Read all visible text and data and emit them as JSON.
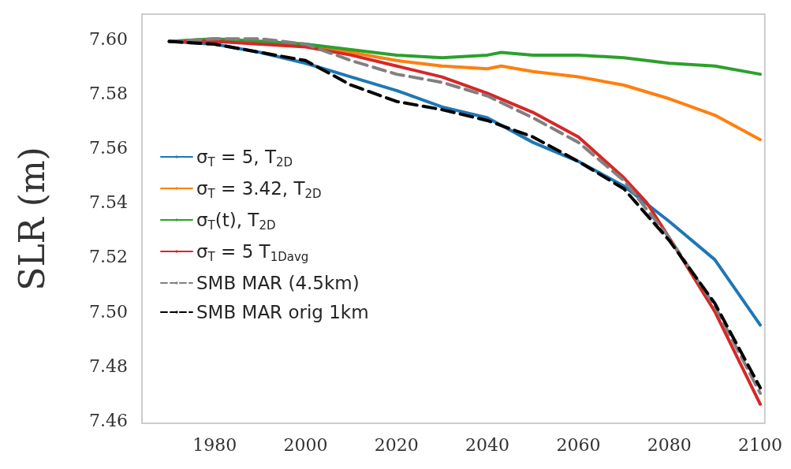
{
  "chart_data": {
    "type": "line",
    "ylabel": "SLR (m)",
    "xlim": [
      1964,
      2101
    ],
    "ylim": [
      7.459,
      7.609
    ],
    "xticks": [
      1980,
      2000,
      2020,
      2040,
      2060,
      2080,
      2100
    ],
    "yticks": [
      {
        "value": 7.46,
        "label": "7.46"
      },
      {
        "value": 7.48,
        "label": "7.48"
      },
      {
        "value": 7.5,
        "label": "7.50"
      },
      {
        "value": 7.52,
        "label": "7.52"
      },
      {
        "value": 7.54,
        "label": "7.54"
      },
      {
        "value": 7.56,
        "label": "7.56"
      },
      {
        "value": 7.58,
        "label": "7.58"
      },
      {
        "value": 7.6,
        "label": "7.60"
      }
    ],
    "grid": false,
    "legend": "left",
    "marker": "none",
    "series": [
      {
        "name": "σ$_{T}$ = 5, T$_{2D}$",
        "color": "#1f77b4",
        "line_style": "solid",
        "x": [
          1970,
          1980,
          1990,
          2000,
          2010,
          2020,
          2030,
          2040,
          2050,
          2060,
          2070,
          2080,
          2090,
          2100
        ],
        "values": [
          7.599,
          7.598,
          7.595,
          7.591,
          7.586,
          7.581,
          7.575,
          7.571,
          7.562,
          7.555,
          7.546,
          7.533,
          7.519,
          7.495
        ]
      },
      {
        "name": "σ$_{T}$ = 3.42, T$_{2D}$",
        "color": "#ff7f0e",
        "line_style": "solid",
        "x": [
          1990,
          2000,
          2010,
          2020,
          2030,
          2040,
          2043,
          2050,
          2060,
          2070,
          2080,
          2090,
          2100
        ],
        "values": [
          7.599,
          7.598,
          7.595,
          7.592,
          7.59,
          7.589,
          7.59,
          7.588,
          7.586,
          7.583,
          7.578,
          7.572,
          7.563
        ]
      },
      {
        "name": "σ$_{T}$(t), T$_{2D}$",
        "color": "#2ca02c",
        "line_style": "solid",
        "x": [
          1970,
          1980,
          1990,
          2000,
          2010,
          2020,
          2030,
          2040,
          2043,
          2050,
          2060,
          2070,
          2080,
          2090,
          2100
        ],
        "values": [
          7.599,
          7.6,
          7.599,
          7.598,
          7.596,
          7.594,
          7.593,
          7.594,
          7.595,
          7.594,
          7.594,
          7.593,
          7.591,
          7.59,
          7.587
        ]
      },
      {
        "name": "σ$_{T}$ = 5 T$_{1Davg}$",
        "color": "#d62728",
        "line_style": "solid",
        "x": [
          1970,
          1980,
          1990,
          2000,
          2010,
          2020,
          2030,
          2040,
          2050,
          2060,
          2070,
          2075,
          2080,
          2090,
          2100
        ],
        "values": [
          7.599,
          7.599,
          7.598,
          7.597,
          7.594,
          7.59,
          7.586,
          7.58,
          7.573,
          7.564,
          7.549,
          7.54,
          7.527,
          7.5,
          7.466
        ]
      },
      {
        "name": "SMB MAR (4.5km)",
        "color": "#808080",
        "line_style": "dashed",
        "x": [
          1970,
          1980,
          1990,
          2000,
          2010,
          2020,
          2030,
          2040,
          2050,
          2060,
          2070,
          2080,
          2090,
          2100
        ],
        "values": [
          7.599,
          7.6,
          7.6,
          7.598,
          7.592,
          7.587,
          7.584,
          7.579,
          7.571,
          7.562,
          7.548,
          7.527,
          7.502,
          7.47
        ]
      },
      {
        "name": "SMB MAR orig 1km",
        "color": "#000000",
        "line_style": "dashed",
        "x": [
          1970,
          1980,
          1990,
          2000,
          2010,
          2020,
          2030,
          2040,
          2050,
          2060,
          2070,
          2080,
          2090,
          2100
        ],
        "values": [
          7.599,
          7.598,
          7.595,
          7.592,
          7.583,
          7.577,
          7.574,
          7.57,
          7.564,
          7.555,
          7.545,
          7.526,
          7.503,
          7.472
        ]
      }
    ]
  }
}
